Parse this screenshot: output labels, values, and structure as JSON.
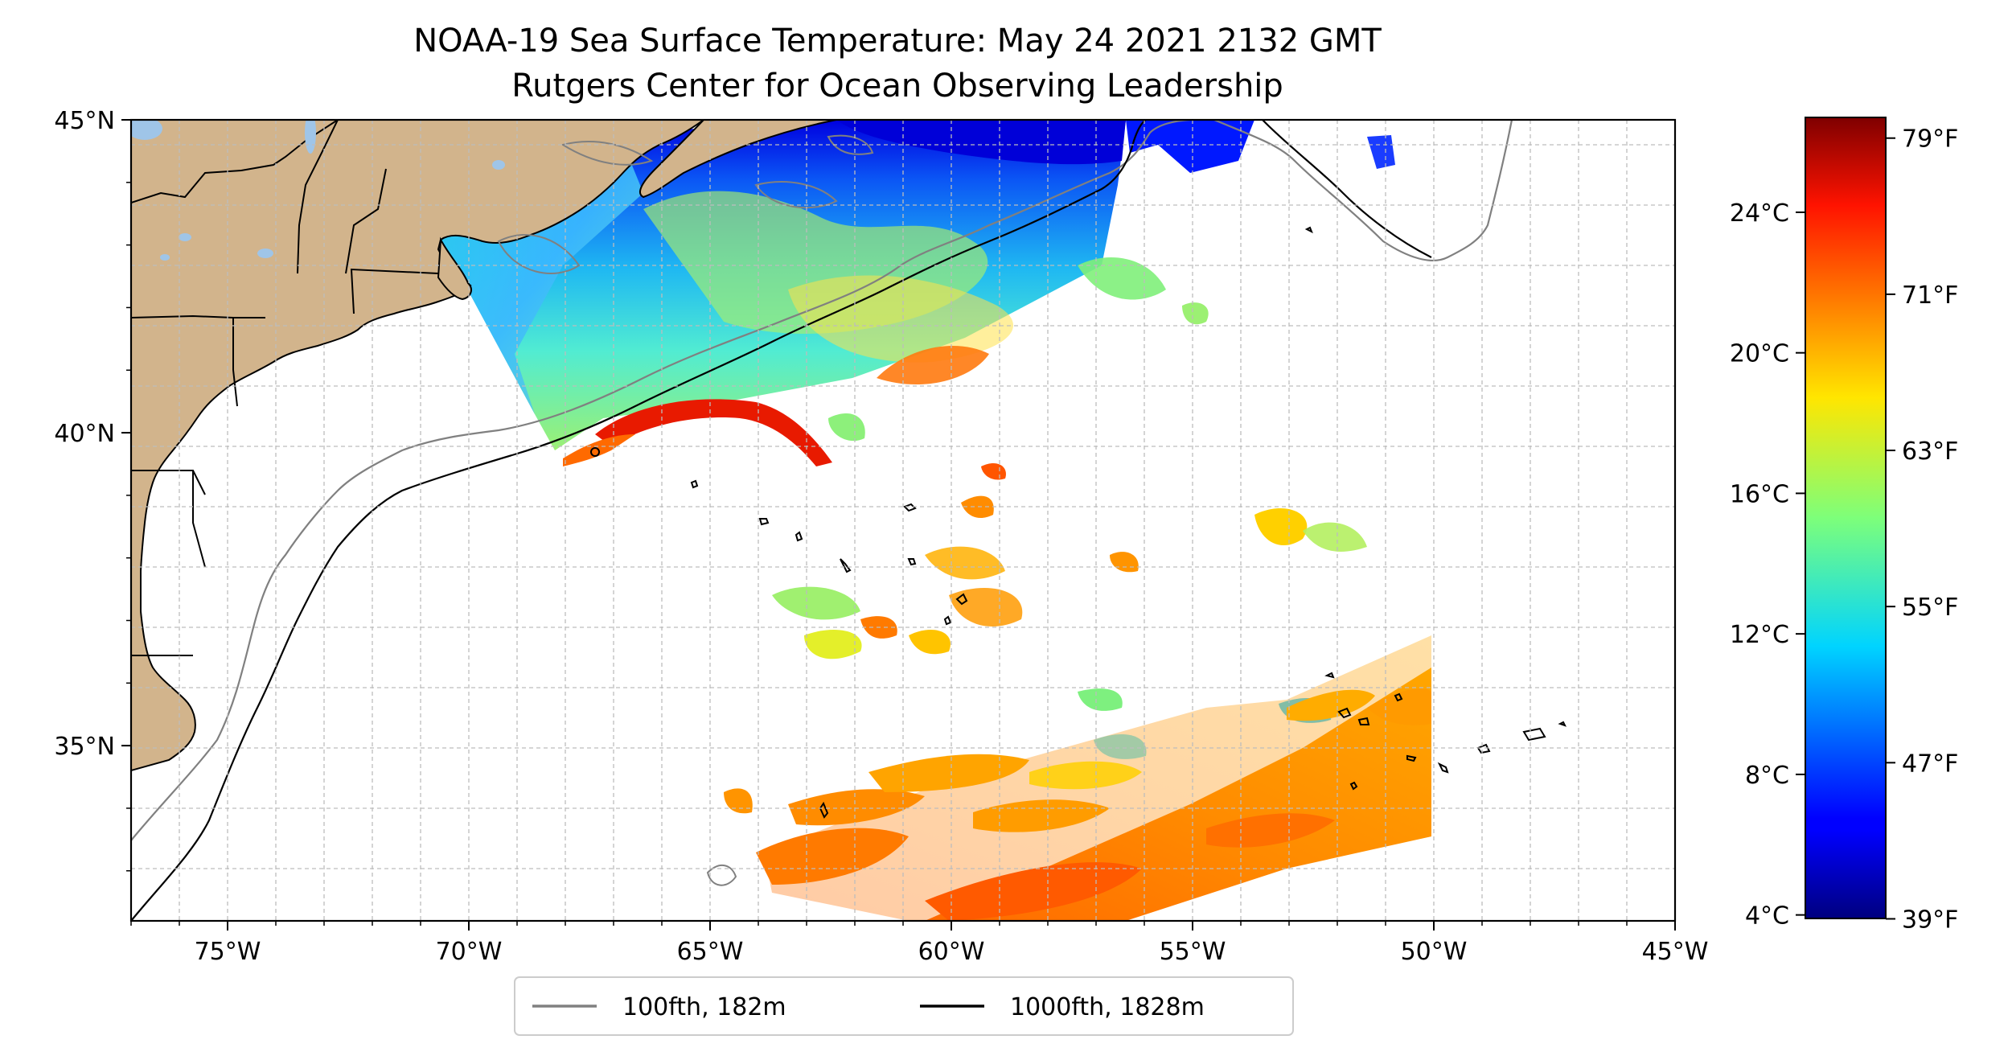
{
  "title": {
    "line1": "NOAA-19 Sea Surface Temperature: May 24 2021 2132 GMT",
    "line2": "Rutgers Center for Ocean Observing Leadership"
  },
  "map": {
    "lon_range": [
      -77,
      -45
    ],
    "lat_range": [
      32.2,
      45
    ],
    "lon_ticks": [
      {
        "value": -75,
        "label": "75°W"
      },
      {
        "value": -70,
        "label": "70°W"
      },
      {
        "value": -65,
        "label": "65°W"
      },
      {
        "value": -60,
        "label": "60°W"
      },
      {
        "value": -55,
        "label": "55°W"
      },
      {
        "value": -50,
        "label": "50°W"
      },
      {
        "value": -45,
        "label": "45°W"
      }
    ],
    "lat_ticks": [
      {
        "value": 45,
        "label": "45°N"
      },
      {
        "value": 40,
        "label": "40°N"
      },
      {
        "value": 35,
        "label": "35°N"
      }
    ],
    "grid": true,
    "land_color": "#d2b48c",
    "lake_color": "#9fc5e8"
  },
  "legend": {
    "entries": [
      {
        "label": "100fth, 182m",
        "color": "#808080"
      },
      {
        "label": "1000fth, 1828m",
        "color": "#000000"
      }
    ]
  },
  "colorbar": {
    "colormap": "jet",
    "range_c": [
      3.9,
      26.7
    ],
    "celsius_ticks": [
      {
        "value": 4,
        "label": "4°C"
      },
      {
        "value": 8,
        "label": "8°C"
      },
      {
        "value": 12,
        "label": "12°C"
      },
      {
        "value": 16,
        "label": "16°C"
      },
      {
        "value": 20,
        "label": "20°C"
      },
      {
        "value": 24,
        "label": "24°C"
      }
    ],
    "fahrenheit_ticks": [
      {
        "value": 39,
        "label": "39°F"
      },
      {
        "value": 47,
        "label": "47°F"
      },
      {
        "value": 55,
        "label": "55°F"
      },
      {
        "value": 63,
        "label": "63°F"
      },
      {
        "value": 71,
        "label": "71°F"
      },
      {
        "value": 79,
        "label": "79°F"
      }
    ]
  }
}
